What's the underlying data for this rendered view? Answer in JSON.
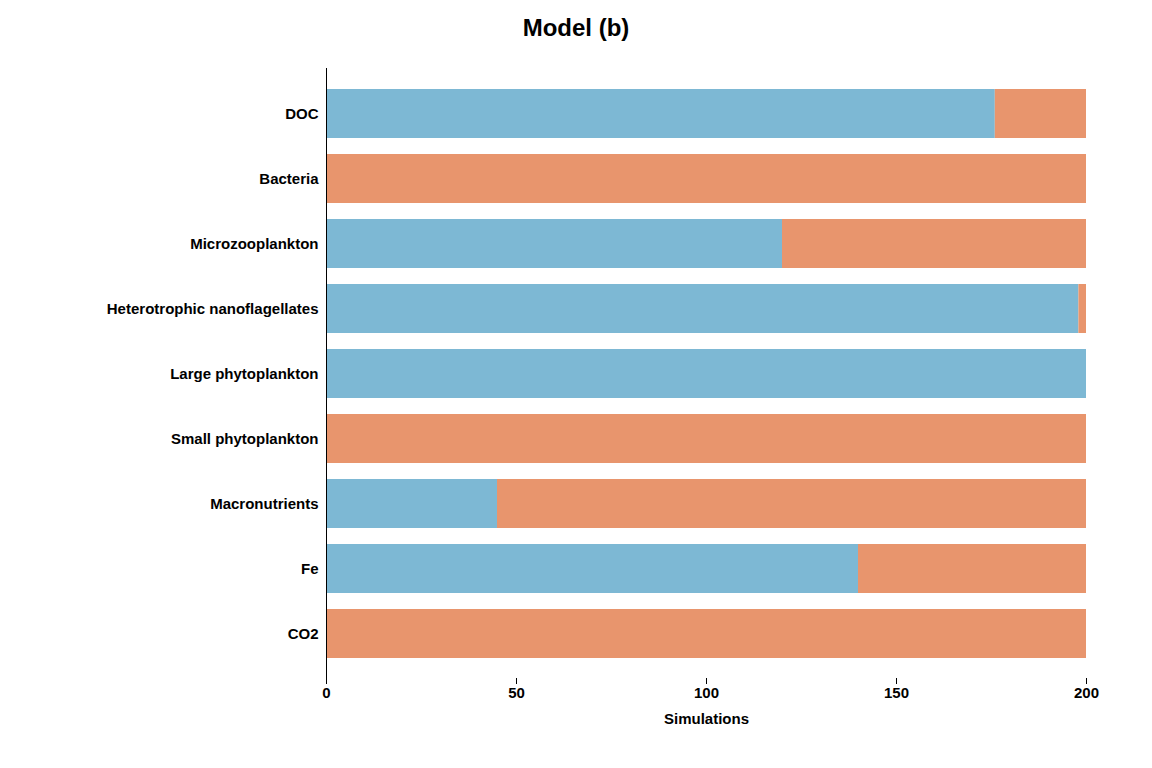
{
  "chart_data": {
    "type": "bar",
    "orientation": "horizontal",
    "stacked": true,
    "title": "Model (b)",
    "xlabel": "Simulations",
    "categories": [
      "DOC",
      "Bacteria",
      "Microzooplankton",
      "Heterotrophic nanoflagellates",
      "Large phytoplankton",
      "Small phytoplankton",
      "Macronutrients",
      "Fe",
      "CO2"
    ],
    "series": [
      {
        "color": "#7db8d4",
        "values": [
          176,
          0,
          120,
          198,
          200,
          0,
          45,
          140,
          0
        ]
      },
      {
        "color": "#e8956d",
        "values": [
          24,
          200,
          80,
          2,
          0,
          200,
          155,
          60,
          200
        ]
      }
    ],
    "xlim": [
      0,
      200
    ],
    "xticks": [
      0,
      50,
      100,
      150,
      200
    ],
    "grid": false
  }
}
